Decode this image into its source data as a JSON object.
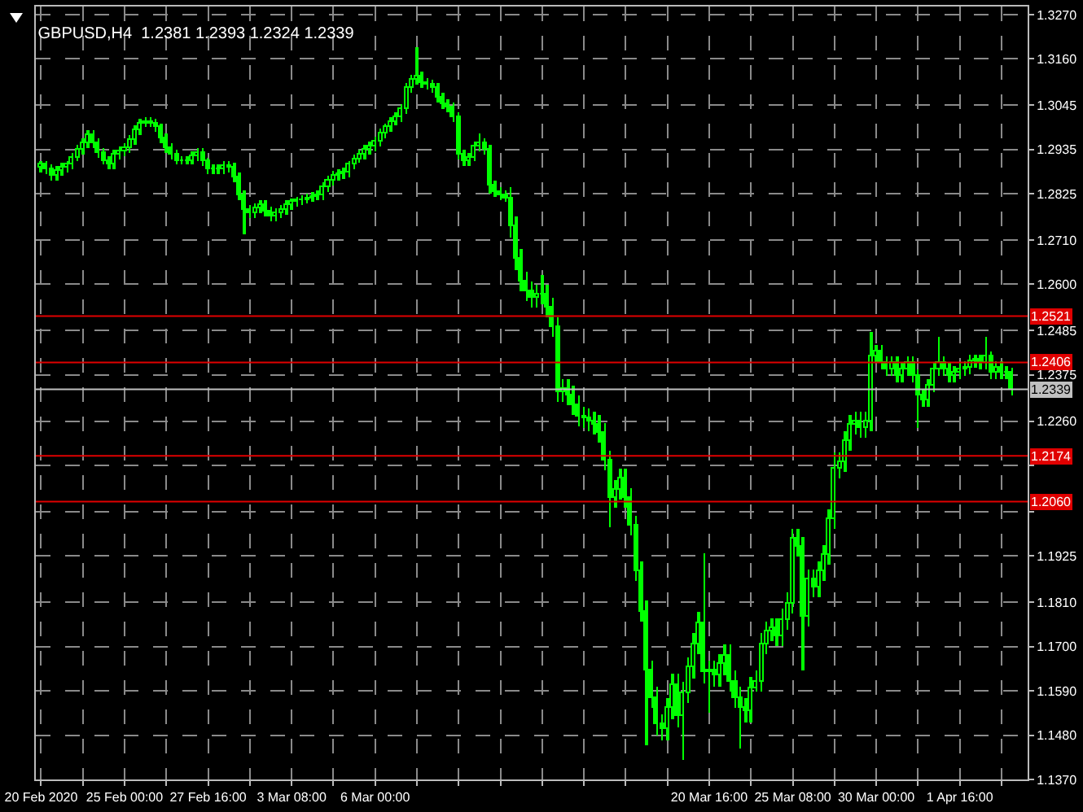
{
  "chart_data": {
    "type": "candlestick",
    "title": "GBPUSD,H4  1.2381 1.2393 1.2324 1.2339",
    "categories": [
      "20 Feb 2020",
      null,
      null,
      null,
      null,
      null,
      null,
      null,
      null,
      null,
      null,
      null,
      null,
      null,
      null,
      null,
      "25 Feb 00:00",
      null,
      null,
      null,
      null,
      null,
      null,
      null,
      null,
      null,
      null,
      null,
      null,
      null,
      null,
      null,
      "27 Feb 16:00",
      null,
      null,
      null,
      null,
      null,
      null,
      null,
      null,
      null,
      null,
      null,
      null,
      null,
      null,
      null,
      "3 Mar 08:00",
      null,
      null,
      null,
      null,
      null,
      null,
      null,
      null,
      null,
      null,
      null,
      null,
      null,
      null,
      null,
      "6 Mar 00:00",
      null,
      null,
      null,
      null,
      null,
      null,
      null,
      null,
      null,
      null,
      null,
      null,
      null,
      null,
      null,
      null,
      null,
      null,
      null,
      null,
      null,
      null,
      null,
      null,
      null,
      null,
      null,
      null,
      null,
      null,
      null,
      null,
      null,
      null,
      null,
      null,
      null,
      null,
      null,
      null,
      null,
      null,
      null,
      null,
      null,
      null,
      null,
      null,
      null,
      null,
      null,
      null,
      null,
      null,
      null,
      null,
      null,
      null,
      null,
      null,
      null,
      null,
      null,
      "20 Mar 16:00",
      null,
      null,
      null,
      null,
      null,
      null,
      null,
      null,
      null,
      null,
      null,
      null,
      null,
      null,
      null,
      "25 Mar 08:00",
      null,
      null,
      null,
      null,
      null,
      null,
      null,
      null,
      null,
      null,
      null,
      null,
      null,
      null,
      null,
      "30 Mar 00:00",
      null,
      null,
      null,
      null,
      null,
      null,
      null,
      null,
      null,
      null,
      null,
      null,
      null,
      null,
      null,
      "1 Apr 16:00",
      null,
      null,
      null,
      null,
      null,
      null,
      null,
      null,
      null,
      null
    ],
    "series": [
      {
        "color": "#00ff00",
        "ohlc": [
          [
            1.2888,
            1.2908,
            1.2876,
            1.2896
          ],
          [
            1.2896,
            1.2908,
            1.2872,
            1.2884
          ],
          [
            1.2884,
            1.2896,
            1.2856,
            1.2868
          ],
          [
            1.2868,
            1.2892,
            1.2856,
            1.288
          ],
          [
            1.288,
            1.29,
            1.2868,
            1.2888
          ],
          [
            1.2888,
            1.2908,
            1.2876,
            1.2896
          ],
          [
            1.2896,
            1.2928,
            1.2884,
            1.2916
          ],
          [
            1.2916,
            1.2948,
            1.2904,
            1.2936
          ],
          [
            1.2936,
            1.2964,
            1.2924,
            1.2952
          ],
          [
            1.2952,
            1.2981,
            1.294,
            1.2969
          ],
          [
            1.2969,
            1.2981,
            1.294,
            1.2952
          ],
          [
            1.2952,
            1.2964,
            1.2916,
            1.2928
          ],
          [
            1.2928,
            1.294,
            1.2896,
            1.2908
          ],
          [
            1.2908,
            1.292,
            1.2884,
            1.2896
          ],
          [
            1.2896,
            1.2936,
            1.2884,
            1.2924
          ],
          [
            1.2924,
            1.2944,
            1.2912,
            1.2932
          ],
          [
            1.2932,
            1.2952,
            1.292,
            1.294
          ],
          [
            1.294,
            1.2972,
            1.2928,
            1.296
          ],
          [
            1.296,
            1.2993,
            1.2948,
            1.2981
          ],
          [
            1.2981,
            1.3013,
            1.2969,
            1.3001
          ],
          [
            1.3001,
            1.3017,
            1.2989,
            1.3005
          ],
          [
            1.3005,
            1.3017,
            1.2989,
            1.3001
          ],
          [
            1.3001,
            1.3013,
            1.2977,
            1.2989
          ],
          [
            1.2989,
            1.3001,
            1.2952,
            1.2964
          ],
          [
            1.2964,
            1.2976,
            1.2928,
            1.294
          ],
          [
            1.294,
            1.2952,
            1.2912,
            1.2924
          ],
          [
            1.2924,
            1.2936,
            1.2896,
            1.2908
          ],
          [
            1.2908,
            1.292,
            1.2896,
            1.2908
          ],
          [
            1.2908,
            1.292,
            1.2896,
            1.2908
          ],
          [
            1.2908,
            1.2932,
            1.2896,
            1.292
          ],
          [
            1.292,
            1.294,
            1.2908,
            1.2928
          ],
          [
            1.2928,
            1.294,
            1.2892,
            1.2904
          ],
          [
            1.2904,
            1.2916,
            1.2872,
            1.2884
          ],
          [
            1.2884,
            1.2896,
            1.2872,
            1.2884
          ],
          [
            1.2884,
            1.2896,
            1.2872,
            1.2884
          ],
          [
            1.2884,
            1.2904,
            1.2872,
            1.2892
          ],
          [
            1.2892,
            1.2904,
            1.2876,
            1.2888
          ],
          [
            1.2888,
            1.29,
            1.2852,
            1.2864
          ],
          [
            1.2864,
            1.2876,
            1.2811,
            1.2823
          ],
          [
            1.2823,
            1.2835,
            1.2723,
            1.2783
          ],
          [
            1.2783,
            1.2795,
            1.2763,
            1.2775
          ],
          [
            1.2775,
            1.2799,
            1.2763,
            1.2787
          ],
          [
            1.2787,
            1.2807,
            1.2775,
            1.2795
          ],
          [
            1.2795,
            1.2807,
            1.2767,
            1.2779
          ],
          [
            1.2779,
            1.2791,
            1.2755,
            1.2767
          ],
          [
            1.2767,
            1.2787,
            1.2755,
            1.2775
          ],
          [
            1.2775,
            1.2795,
            1.2763,
            1.2783
          ],
          [
            1.2783,
            1.2807,
            1.2771,
            1.2795
          ],
          [
            1.2795,
            1.2815,
            1.2783,
            1.2803
          ],
          [
            1.2803,
            1.2819,
            1.2791,
            1.2807
          ],
          [
            1.2807,
            1.2823,
            1.2795,
            1.2811
          ],
          [
            1.2811,
            1.2827,
            1.2799,
            1.2815
          ],
          [
            1.2815,
            1.2831,
            1.2803,
            1.2819
          ],
          [
            1.2819,
            1.2835,
            1.2807,
            1.2823
          ],
          [
            1.2823,
            1.2852,
            1.2811,
            1.284
          ],
          [
            1.284,
            1.2868,
            1.2828,
            1.2856
          ],
          [
            1.2856,
            1.288,
            1.2844,
            1.2868
          ],
          [
            1.2868,
            1.2884,
            1.2856,
            1.2872
          ],
          [
            1.2872,
            1.2888,
            1.286,
            1.2876
          ],
          [
            1.2876,
            1.2908,
            1.2864,
            1.2896
          ],
          [
            1.2896,
            1.2924,
            1.2884,
            1.2912
          ],
          [
            1.2912,
            1.2936,
            1.29,
            1.2924
          ],
          [
            1.2924,
            1.2948,
            1.2912,
            1.2936
          ],
          [
            1.2936,
            1.2956,
            1.2924,
            1.2944
          ],
          [
            1.2944,
            1.2968,
            1.2932,
            1.2956
          ],
          [
            1.2956,
            1.2985,
            1.2944,
            1.2973
          ],
          [
            1.2973,
            1.3001,
            1.2961,
            1.2989
          ],
          [
            1.2989,
            1.3017,
            1.2977,
            1.3005
          ],
          [
            1.3005,
            1.3029,
            1.2993,
            1.3017
          ],
          [
            1.3017,
            1.3049,
            1.3005,
            1.3037
          ],
          [
            1.3037,
            1.3101,
            1.3025,
            1.3089
          ],
          [
            1.3089,
            1.3122,
            1.3077,
            1.311
          ],
          [
            1.311,
            1.319,
            1.3098,
            1.3118
          ],
          [
            1.3118,
            1.313,
            1.3089,
            1.3101
          ],
          [
            1.3101,
            1.3113,
            1.3085,
            1.3097
          ],
          [
            1.3097,
            1.3109,
            1.3077,
            1.3089
          ],
          [
            1.3089,
            1.3101,
            1.3053,
            1.3065
          ],
          [
            1.3065,
            1.3077,
            1.3037,
            1.3049
          ],
          [
            1.3049,
            1.3061,
            1.3029,
            1.3041
          ],
          [
            1.3041,
            1.3053,
            1.3005,
            1.3017
          ],
          [
            1.3017,
            1.3029,
            1.2912,
            1.2924
          ],
          [
            1.2924,
            1.2936,
            1.2892,
            1.2904
          ],
          [
            1.2904,
            1.2928,
            1.2892,
            1.2916
          ],
          [
            1.2916,
            1.2956,
            1.2904,
            1.2944
          ],
          [
            1.2944,
            1.2974,
            1.2932,
            1.2952
          ],
          [
            1.2952,
            1.2964,
            1.2924,
            1.2936
          ],
          [
            1.2936,
            1.2948,
            1.2827,
            1.2844
          ],
          [
            1.2844,
            1.2856,
            1.2816,
            1.2828
          ],
          [
            1.2828,
            1.284,
            1.2811,
            1.2823
          ],
          [
            1.2823,
            1.2835,
            1.2803,
            1.2815
          ],
          [
            1.2815,
            1.284,
            1.2718,
            1.2743
          ],
          [
            1.2743,
            1.2768,
            1.2637,
            1.2662
          ],
          [
            1.2662,
            1.2687,
            1.2581,
            1.2606
          ],
          [
            1.2606,
            1.2631,
            1.2557,
            1.2582
          ],
          [
            1.2582,
            1.2607,
            1.2541,
            1.2566
          ],
          [
            1.2566,
            1.2599,
            1.2541,
            1.2574
          ],
          [
            1.2574,
            1.2622,
            1.2549,
            1.2574
          ],
          [
            1.2574,
            1.2599,
            1.2516,
            1.2541
          ],
          [
            1.2541,
            1.2566,
            1.2468,
            1.2493
          ],
          [
            1.2493,
            1.2518,
            1.2307,
            1.2332
          ],
          [
            1.2332,
            1.2365,
            1.2307,
            1.234
          ],
          [
            1.234,
            1.2365,
            1.2299,
            1.2324
          ],
          [
            1.2324,
            1.2349,
            1.2275,
            1.23
          ],
          [
            1.23,
            1.2325,
            1.2246,
            1.2271
          ],
          [
            1.2271,
            1.2296,
            1.2242,
            1.2267
          ],
          [
            1.2267,
            1.2292,
            1.2234,
            1.2259
          ],
          [
            1.2259,
            1.2284,
            1.2226,
            1.2251
          ],
          [
            1.2251,
            1.2276,
            1.2206,
            1.2231
          ],
          [
            1.2231,
            1.2256,
            1.2138,
            1.2163
          ],
          [
            1.2163,
            1.2188,
            1.1997,
            1.207
          ],
          [
            1.207,
            1.2115,
            1.2045,
            1.209
          ],
          [
            1.209,
            1.2143,
            1.2065,
            1.2118
          ],
          [
            1.2118,
            1.2143,
            1.2045,
            1.207
          ],
          [
            1.207,
            1.2095,
            1.1976,
            1.2001
          ],
          [
            1.2001,
            1.2026,
            1.1863,
            1.1888
          ],
          [
            1.1888,
            1.1913,
            1.1763,
            1.1788
          ],
          [
            1.1788,
            1.1813,
            1.1453,
            1.1639
          ],
          [
            1.1639,
            1.1664,
            1.1549,
            1.1574
          ],
          [
            1.1574,
            1.1599,
            1.1481,
            1.1506
          ],
          [
            1.1506,
            1.1531,
            1.1469,
            1.1494
          ],
          [
            1.1494,
            1.1571,
            1.1469,
            1.1546
          ],
          [
            1.1546,
            1.1631,
            1.1521,
            1.1606
          ],
          [
            1.1606,
            1.1631,
            1.1501,
            1.1526
          ],
          [
            1.1526,
            1.1611,
            1.1418,
            1.1586
          ],
          [
            1.1586,
            1.1672,
            1.1561,
            1.1647
          ],
          [
            1.1647,
            1.1732,
            1.1622,
            1.1707
          ],
          [
            1.1707,
            1.1785,
            1.1682,
            1.176
          ],
          [
            1.176,
            1.193,
            1.161,
            1.1635
          ],
          [
            1.1635,
            1.1664,
            1.1534,
            1.1639
          ],
          [
            1.1639,
            1.1664,
            1.1602,
            1.1627
          ],
          [
            1.1627,
            1.168,
            1.1602,
            1.1655
          ],
          [
            1.1655,
            1.1704,
            1.163,
            1.1679
          ],
          [
            1.1679,
            1.1704,
            1.1589,
            1.1614
          ],
          [
            1.1614,
            1.1639,
            1.1549,
            1.1574
          ],
          [
            1.1574,
            1.1599,
            1.1445,
            1.1546
          ],
          [
            1.1546,
            1.1571,
            1.1513,
            1.1538
          ],
          [
            1.1538,
            1.1623,
            1.1513,
            1.1598
          ],
          [
            1.1598,
            1.1639,
            1.1589,
            1.1614
          ],
          [
            1.1614,
            1.1732,
            1.1589,
            1.1707
          ],
          [
            1.1707,
            1.1764,
            1.1682,
            1.1739
          ],
          [
            1.1739,
            1.1772,
            1.1714,
            1.1747
          ],
          [
            1.1747,
            1.1772,
            1.1702,
            1.1727
          ],
          [
            1.1727,
            1.1793,
            1.1702,
            1.1768
          ],
          [
            1.1768,
            1.1833,
            1.1743,
            1.1808
          ],
          [
            1.1808,
            1.1994,
            1.1783,
            1.1969
          ],
          [
            1.1969,
            1.1994,
            1.1924,
            1.1949
          ],
          [
            1.1949,
            1.1974,
            1.1639,
            1.1776
          ],
          [
            1.1776,
            1.1893,
            1.1751,
            1.1868
          ],
          [
            1.1868,
            1.1893,
            1.1823,
            1.1848
          ],
          [
            1.1848,
            1.1913,
            1.1823,
            1.1888
          ],
          [
            1.1888,
            1.1954,
            1.1863,
            1.1929
          ],
          [
            1.1929,
            1.2042,
            1.1904,
            1.2017
          ],
          [
            1.2017,
            1.2183,
            1.1992,
            1.2142
          ],
          [
            1.2142,
            1.2183,
            1.2117,
            1.2158
          ],
          [
            1.2158,
            1.2236,
            1.2133,
            1.2211
          ],
          [
            1.2211,
            1.2276,
            1.2186,
            1.2251
          ],
          [
            1.2251,
            1.2284,
            1.2226,
            1.2259
          ],
          [
            1.2259,
            1.2284,
            1.2218,
            1.2243
          ],
          [
            1.2243,
            1.2284,
            1.2218,
            1.2259
          ],
          [
            1.2259,
            1.2481,
            1.2234,
            1.242
          ],
          [
            1.242,
            1.2448,
            1.2405,
            1.2433
          ],
          [
            1.2433,
            1.2448,
            1.2389,
            1.2404
          ],
          [
            1.2404,
            1.2419,
            1.2373,
            1.2388
          ],
          [
            1.2388,
            1.2419,
            1.2373,
            1.2404
          ],
          [
            1.2404,
            1.2419,
            1.2357,
            1.2372
          ],
          [
            1.2372,
            1.2403,
            1.2357,
            1.2388
          ],
          [
            1.2388,
            1.2419,
            1.2373,
            1.2404
          ],
          [
            1.2404,
            1.2419,
            1.2357,
            1.2372
          ],
          [
            1.2372,
            1.2387,
            1.2243,
            1.2324
          ],
          [
            1.2324,
            1.2339,
            1.2297,
            1.2312
          ],
          [
            1.2312,
            1.2363,
            1.2297,
            1.2348
          ],
          [
            1.2348,
            1.2403,
            1.2333,
            1.2388
          ],
          [
            1.2388,
            1.2469,
            1.2373,
            1.2404
          ],
          [
            1.2404,
            1.2419,
            1.2373,
            1.2388
          ],
          [
            1.2388,
            1.2403,
            1.2357,
            1.2372
          ],
          [
            1.2372,
            1.2395,
            1.2357,
            1.238
          ],
          [
            1.238,
            1.2403,
            1.2365,
            1.2388
          ],
          [
            1.2388,
            1.2407,
            1.2373,
            1.2392
          ],
          [
            1.2392,
            1.2423,
            1.2377,
            1.2408
          ],
          [
            1.2408,
            1.2427,
            1.2393,
            1.2412
          ],
          [
            1.2412,
            1.2427,
            1.2389,
            1.2404
          ],
          [
            1.2404,
            1.2469,
            1.2389,
            1.242
          ],
          [
            1.242,
            1.2435,
            1.2365,
            1.238
          ],
          [
            1.238,
            1.2407,
            1.2365,
            1.2392
          ],
          [
            1.2392,
            1.2407,
            1.2365,
            1.238
          ],
          [
            1.238,
            1.2396,
            1.2366,
            1.2381
          ],
          [
            1.2381,
            1.2393,
            1.2324,
            1.2339
          ]
        ]
      }
    ],
    "ylim": [
      1.137,
      1.329
    ],
    "yticks": [
      {
        "value": 1.327,
        "label": "1.3270"
      },
      {
        "value": 1.316,
        "label": "1.3160"
      },
      {
        "value": 1.3045,
        "label": "1.3045"
      },
      {
        "value": 1.2935,
        "label": "1.2935"
      },
      {
        "value": 1.2825,
        "label": "1.2825"
      },
      {
        "value": 1.271,
        "label": "1.2710"
      },
      {
        "value": 1.26,
        "label": "1.2600"
      },
      {
        "value": 1.2485,
        "label": "1.2485"
      },
      {
        "value": 1.2375,
        "label": "1.2375"
      },
      {
        "value": 1.226,
        "label": "1.2260"
      },
      {
        "value": 1.215,
        "label": null
      },
      {
        "value": 1.2035,
        "label": null
      },
      {
        "value": 1.1925,
        "label": "1.1925"
      },
      {
        "value": 1.181,
        "label": "1.1810"
      },
      {
        "value": 1.17,
        "label": "1.1700"
      },
      {
        "value": 1.159,
        "label": "1.1590"
      },
      {
        "value": 1.148,
        "label": "1.1480"
      },
      {
        "value": 1.137,
        "label": "1.1370"
      }
    ],
    "ref_lines": [
      {
        "axis": "y",
        "value": 1.2521,
        "label": "1.2521",
        "color": "#e00000"
      },
      {
        "axis": "y",
        "value": 1.2406,
        "label": "1.2406",
        "color": "#e00000"
      },
      {
        "axis": "y",
        "value": 1.2174,
        "label": "1.2174",
        "color": "#e00000"
      },
      {
        "axis": "y",
        "value": 1.206,
        "label": "1.2060",
        "color": "#e00000"
      },
      {
        "axis": "y",
        "value": 1.2339,
        "label": "1.2339",
        "color": "#c0c0c0"
      }
    ],
    "grid": true
  }
}
